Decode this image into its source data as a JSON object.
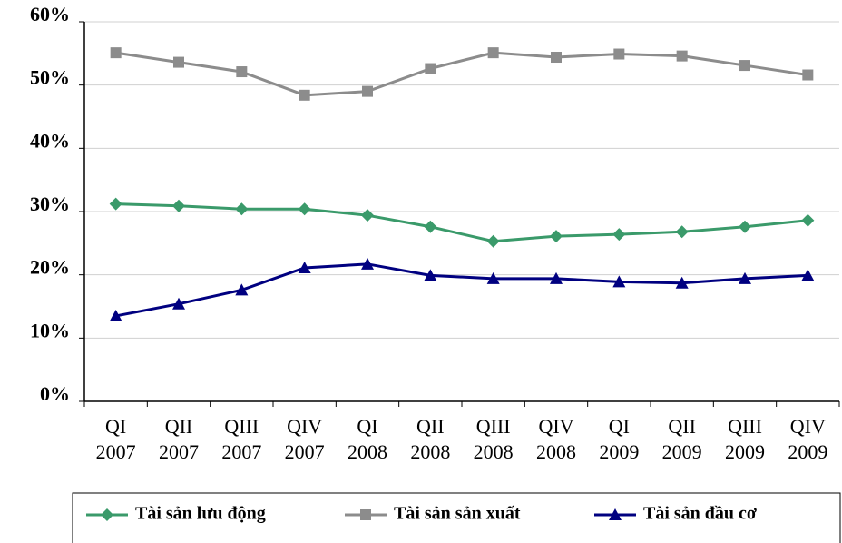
{
  "chart_data": {
    "type": "line",
    "categories": [
      "QI 2007",
      "QII 2007",
      "QIII 2007",
      "QIV 2007",
      "QI 2008",
      "QII 2008",
      "QIII 2008",
      "QIV 2008",
      "QI 2009",
      "QII 2009",
      "QIII 2009",
      "QIV 2009"
    ],
    "series": [
      {
        "name": "Tài sản lưu động",
        "color": "#3a9a6a",
        "marker": "diamond",
        "values": [
          31.2,
          30.9,
          30.4,
          30.4,
          29.4,
          27.6,
          25.3,
          26.1,
          26.4,
          26.8,
          27.6,
          28.6
        ]
      },
      {
        "name": "Tài sản sản xuất",
        "color": "#8c8c8c",
        "marker": "square",
        "values": [
          55.1,
          53.6,
          52.1,
          48.4,
          49.0,
          52.6,
          55.1,
          54.4,
          54.9,
          54.6,
          53.1,
          51.6
        ]
      },
      {
        "name": "Tài sản đầu cơ",
        "color": "#000080",
        "marker": "triangle",
        "values": [
          13.5,
          15.4,
          17.6,
          21.1,
          21.7,
          19.9,
          19.4,
          19.4,
          18.9,
          18.7,
          19.4,
          19.9
        ]
      }
    ],
    "ylim": [
      0,
      60
    ],
    "yticks": [
      {
        "value": 0,
        "label": "0%"
      },
      {
        "value": 10,
        "label": "10%"
      },
      {
        "value": 20,
        "label": "20%"
      },
      {
        "value": 30,
        "label": "30%"
      },
      {
        "value": 40,
        "label": "40%"
      },
      {
        "value": 50,
        "label": "50%"
      },
      {
        "value": 60,
        "label": "60%"
      }
    ],
    "grid": true,
    "legend": "bottom"
  }
}
